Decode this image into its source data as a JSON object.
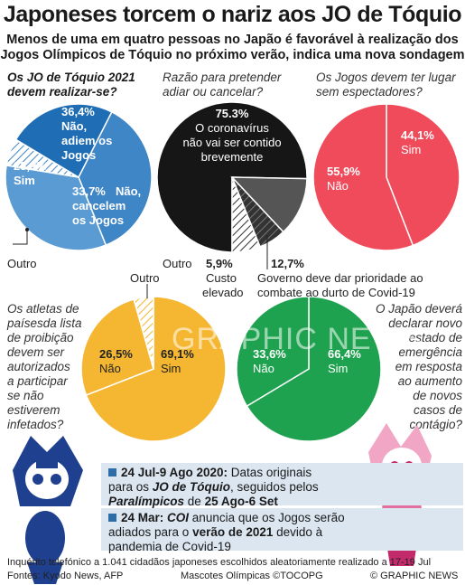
{
  "title": "Japoneses torcem o nariz aos JO de Tóquio",
  "subtitle_line1": "Menos de uma em quatro pessoas no Japão é favorável à realização dos",
  "subtitle_line2": "Jogos Olímpicos de Tóquio no próximo verão, indica uma nova sondagem",
  "questions": {
    "q1_line1": "Os JO de Tóquio 2021",
    "q1_line2": "devem realizar-se?",
    "q2_line1": "Razão para pretender",
    "q2_line2": "adiar ou cancelar?",
    "q3_line1": "Os Jogos devem ter lugar",
    "q3_line2": "sem espectadores?",
    "q4_lines": [
      "Os atletas de",
      "paísesda lista",
      "de proibição",
      "devem ser",
      "autorizados",
      "a participar",
      "se não",
      "estiverem",
      "infetados?"
    ],
    "q5_lines": [
      "O Japão deverá",
      "declarar novo",
      "estado de",
      "emergência",
      "em resposta",
      "ao aumento",
      "de novos",
      "casos de",
      "contágio?"
    ]
  },
  "colors": {
    "blue_dark": "#1f6db5",
    "blue_mid": "#3f86c6",
    "blue_light": "#5a9bd3",
    "black": "#161616",
    "grey": "#555555",
    "red": "#ef4b5a",
    "orange": "#f5b731",
    "green": "#1ea24f"
  },
  "chart_data": [
    {
      "type": "pie",
      "title": "Os JO de Tóquio 2021 devem realizar-se?",
      "slices": [
        {
          "label": "Não, adiem os Jogos",
          "value": 36.4,
          "text": "36,4%"
        },
        {
          "label": "Não, cancelem os Jogos",
          "value": 33.7,
          "text": "33,7%"
        },
        {
          "label": "Outro",
          "value": 6.0,
          "text": ""
        },
        {
          "label": "Sim",
          "value": 23.9,
          "text": "23,9%"
        }
      ]
    },
    {
      "type": "pie",
      "title": "Razão para pretender adiar ou cancelar?",
      "slices": [
        {
          "label": "O coronavírus não vai ser contido brevemente",
          "value": 75.3,
          "text": "75.3%"
        },
        {
          "label": "Governo deve dar prioridade ao combate ao durto de Covid-19",
          "value": 12.7,
          "text": "12,7%"
        },
        {
          "label": "Custo elevado",
          "value": 5.9,
          "text": "5,9%"
        },
        {
          "label": "Outro",
          "value": 6.1,
          "text": ""
        }
      ]
    },
    {
      "type": "pie",
      "title": "Os Jogos devem ter lugar sem espectadores?",
      "slices": [
        {
          "label": "Sim",
          "value": 44.1,
          "text": "44,1%"
        },
        {
          "label": "Não",
          "value": 55.9,
          "text": "55,9%"
        }
      ]
    },
    {
      "type": "pie",
      "title": "Os atletas de paísesda lista de proibição devem ser autorizados a participar se não estiverem infetados?",
      "slices": [
        {
          "label": "Sim",
          "value": 69.1,
          "text": "69,1%"
        },
        {
          "label": "Não",
          "value": 26.5,
          "text": "26,5%"
        },
        {
          "label": "Outro",
          "value": 4.4,
          "text": ""
        }
      ]
    },
    {
      "type": "pie",
      "title": "O Japão deverá declarar novo estado de emergência em resposta ao aumento de novos casos de contágio?",
      "slices": [
        {
          "label": "Sim",
          "value": 66.4,
          "text": "66,4%"
        },
        {
          "label": "Não",
          "value": 33.6,
          "text": "33,6%"
        }
      ]
    }
  ],
  "labels": {
    "p1_sim": "Sim",
    "p1_adiem_1": "Não,",
    "p1_adiem_2": "adiem os",
    "p1_adiem_3": "Jogos",
    "p1_cancel_1": "Não,",
    "p1_cancel_2": "cancelem",
    "p1_cancel_3": "os Jogos",
    "p1_outro": "Outro",
    "p2_big_1": "O coronavírus",
    "p2_big_2": "não vai ser contido",
    "p2_big_3": "brevemente",
    "p2_outro": "Outro",
    "p2_custo_1": "Custo",
    "p2_custo_2": "elevado",
    "p2_gov_1": "Governo deve dar prioridade ao",
    "p2_gov_2": "combate ao durto de Covid-19",
    "p3_sim": "Sim",
    "p3_nao": "Não",
    "p4_outro": "Outro",
    "p4_nao": "Não",
    "p4_sim": "Sim",
    "p5_nao": "Não",
    "p5_sim": "Sim"
  },
  "timeline": {
    "item1_date": "24 Jul-9 Ago 2020:",
    "item1_text_a": " Datas originais",
    "item1_text_b": "para os ",
    "item1_text_c": "JO de Tóquio",
    "item1_text_d": ", seguidos pelos",
    "item1_text_e": "Paralímpicos",
    "item1_text_f": " de ",
    "item1_text_g": "25 Ago-6 Set",
    "item2_date": "24 Mar: ",
    "item2_text_a": "COI",
    "item2_text_b": " anuncia que os Jogos serão",
    "item2_text_c": "adiados para o ",
    "item2_text_d": "verão de 2021",
    "item2_text_e": " devido à",
    "item2_text_f": "pandemia de Covid-19"
  },
  "footer": {
    "survey": "Inquérito telefónico a 1.041 cidadãos japoneses escolhidos aleatoriamente realizado a 17-19 Jul",
    "sources": "Fontes: Kyodo News, AFP",
    "mascots": "Mascotes Olímpicas ©TOCOPG",
    "copyright": "© GRAPHIC NEWS",
    "watermark": "GRAPHIC NEWS"
  }
}
